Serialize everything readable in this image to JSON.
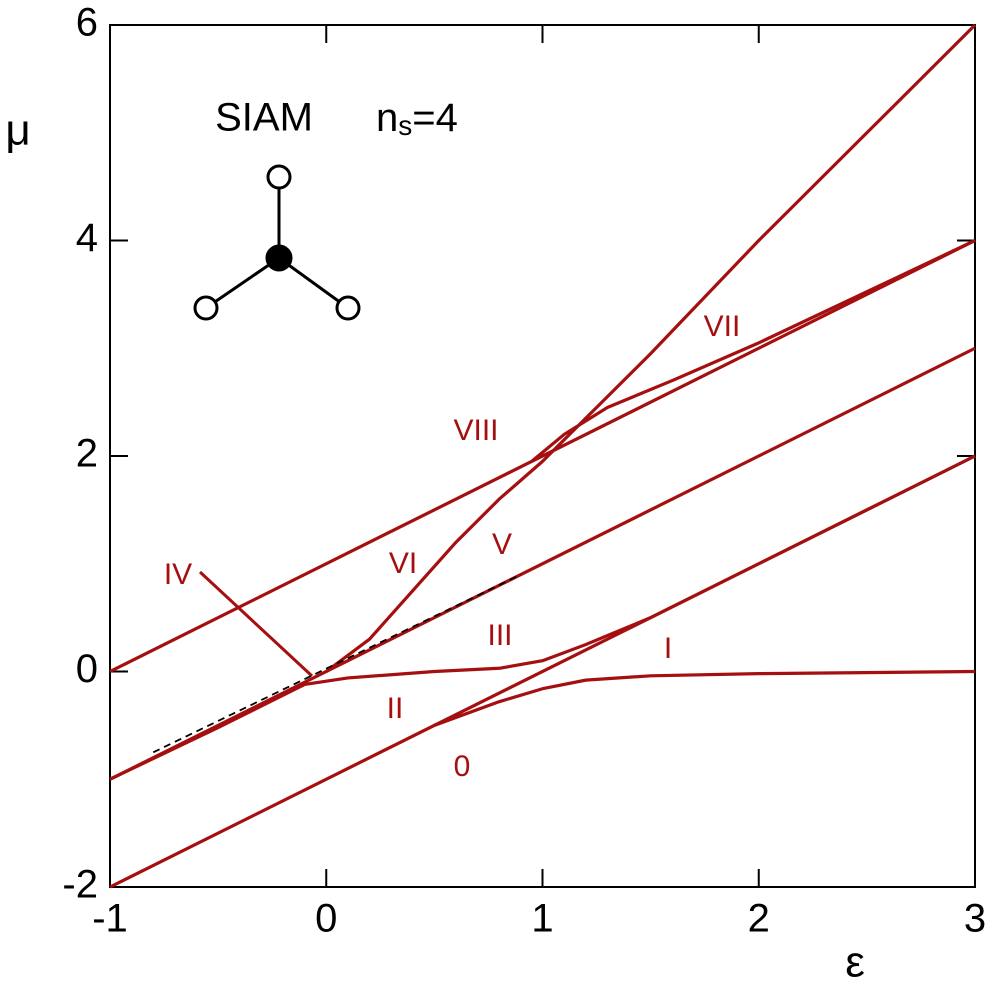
{
  "chart_data": {
    "type": "line",
    "x_label": "ε",
    "y_label": "μ",
    "xlim": [
      -1,
      3
    ],
    "ylim": [
      -2,
      6
    ],
    "xticks": [
      -1,
      0,
      1,
      2,
      3
    ],
    "yticks": [
      -2,
      0,
      2,
      4,
      6
    ],
    "color": "#a50f0f",
    "series": [
      {
        "x": [
          -1,
          3
        ],
        "values": [
          0,
          4
        ]
      },
      {
        "x": [
          0,
          0.2,
          0.4,
          0.6,
          0.8,
          1,
          1.2,
          1.5,
          2,
          3
        ],
        "values": [
          0,
          0.3,
          0.75,
          1.2,
          1.6,
          1.95,
          2.35,
          2.95,
          4,
          6
        ]
      },
      {
        "x": [
          0.95,
          1.1,
          1.3,
          1.6,
          2,
          3
        ],
        "values": [
          1.95,
          2.2,
          2.45,
          2.7,
          3.05,
          4
        ]
      },
      {
        "x": [
          -1,
          3
        ],
        "values": [
          -1,
          3
        ]
      },
      {
        "x": [
          -1,
          -0.5,
          -0.1,
          0.1,
          0.5,
          0.8,
          1,
          1.2,
          1.5,
          2,
          3
        ],
        "values": [
          -1,
          -0.52,
          -0.12,
          -0.06,
          0,
          0.03,
          0.1,
          0.25,
          0.5,
          1,
          2
        ]
      },
      {
        "x": [
          -1,
          3
        ],
        "values": [
          -2,
          2
        ]
      },
      {
        "x": [
          0.5,
          0.8,
          1,
          1.2,
          1.5,
          2,
          3
        ],
        "values": [
          -0.5,
          -0.28,
          -0.16,
          -0.08,
          -0.04,
          -0.02,
          0
        ]
      },
      {
        "x": [
          -0.8,
          0.9
        ],
        "values": [
          -0.75,
          0.9
        ],
        "color": "#000000",
        "dashed": true
      }
    ],
    "annotations": [
      "VIII",
      "VII",
      "VI",
      "V",
      "IV",
      "III",
      "I",
      "II",
      "0"
    ],
    "model_label": "SIAM",
    "size_label": [
      "n",
      "s",
      "=4"
    ]
  }
}
